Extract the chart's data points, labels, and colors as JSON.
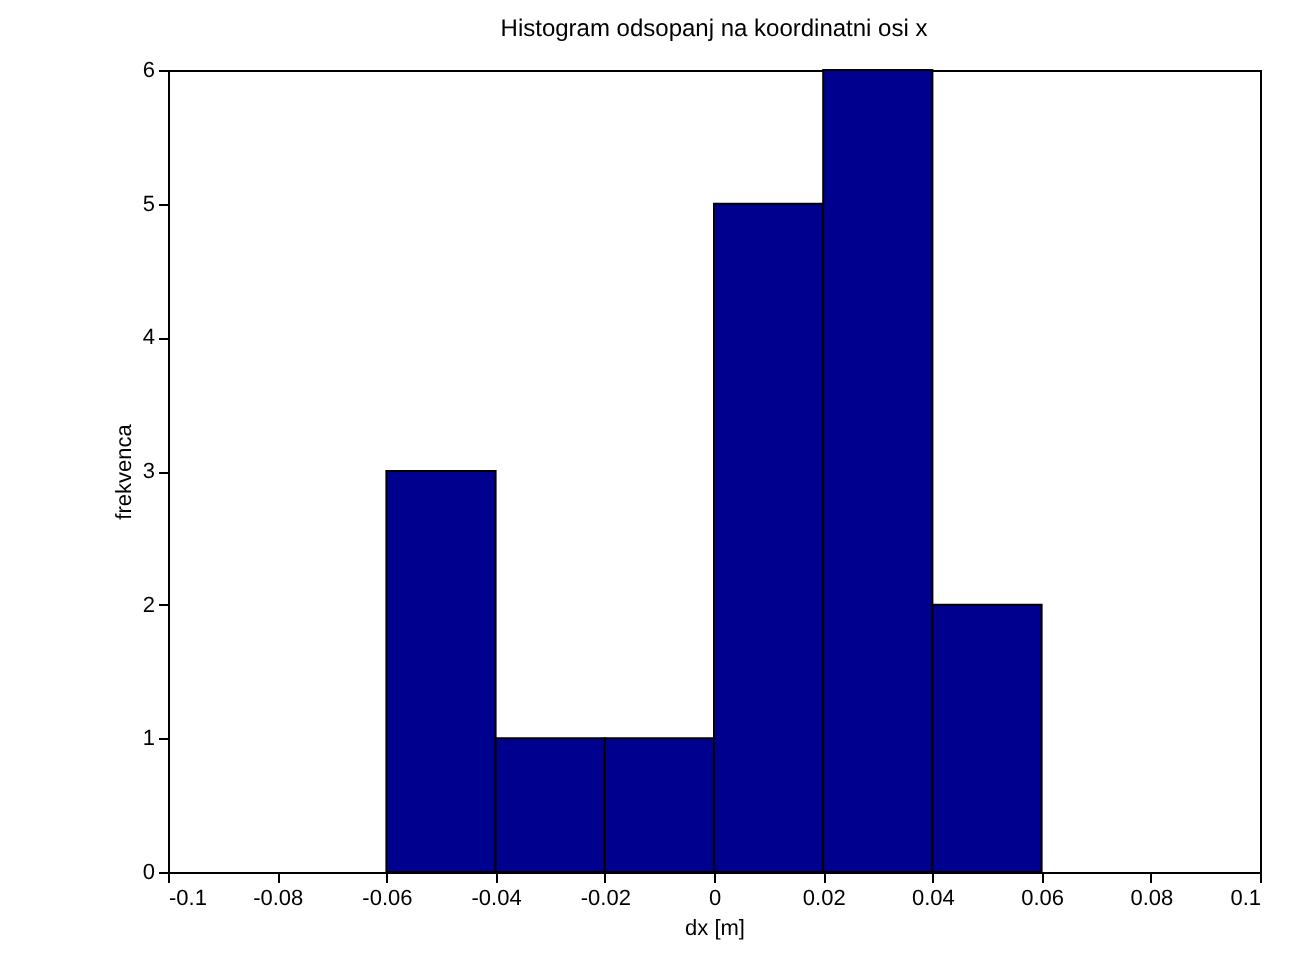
{
  "chart_data": {
    "type": "histogram",
    "title": "Histogram odsopanj na koordinatni osi x",
    "xlabel": "dx [m]",
    "ylabel": "frekvenca",
    "bins": [
      -0.06,
      -0.04,
      -0.02,
      0,
      0.02,
      0.04,
      0.06
    ],
    "values": [
      3,
      1,
      1,
      5,
      6,
      2
    ],
    "color": "#00008f",
    "xlim": [
      -0.1,
      0.1
    ],
    "xticks": [
      -0.1,
      -0.08,
      -0.06,
      -0.04,
      -0.02,
      0,
      0.02,
      0.04,
      0.06,
      0.08,
      0.1
    ],
    "ylim": [
      0,
      6
    ],
    "yticks": [
      0,
      1,
      2,
      3,
      4,
      5,
      6
    ],
    "grid": false
  }
}
